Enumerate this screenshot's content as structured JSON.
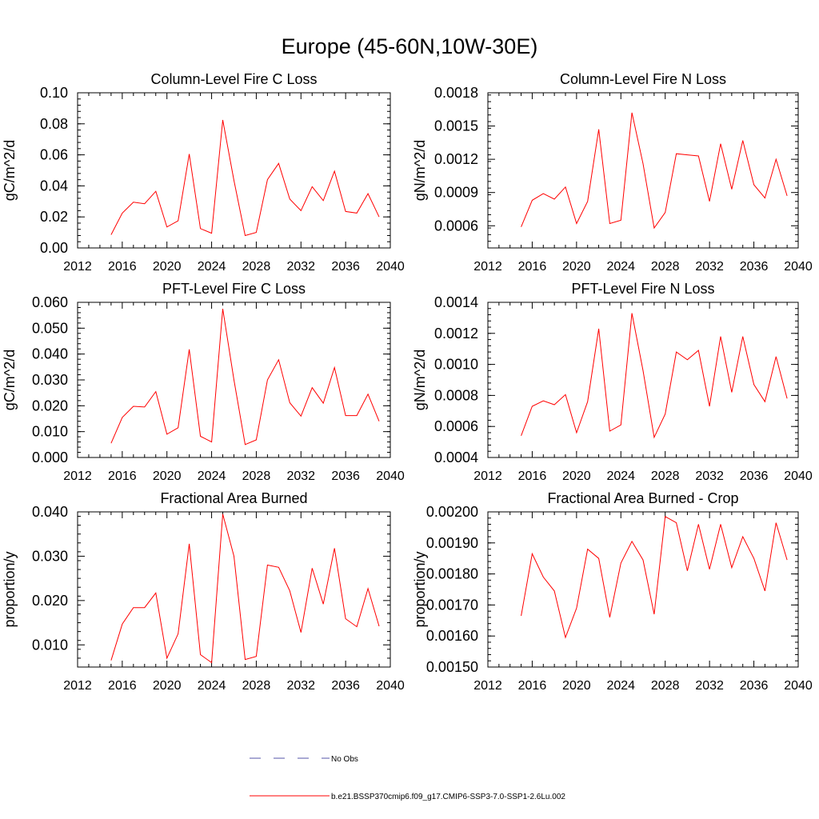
{
  "title": "Europe (45-60N,10W-30E)",
  "legend": {
    "entries": [
      {
        "label": "No Obs",
        "color": "#5555aa",
        "dash": true
      },
      {
        "label": "b.e21.BSSP370cmip6.f09_g17.CMIP6-SSP3-7.0-SSP1-2.6Lu.002",
        "color": "#ff0000",
        "dash": false
      }
    ]
  },
  "chart_data": [
    {
      "type": "line",
      "title": "Column-Level Fire C Loss",
      "ylabel": "gC/m^2/d",
      "xlim": [
        2012,
        2040
      ],
      "ylim": [
        0,
        0.1
      ],
      "xticks": [
        2012,
        2016,
        2020,
        2024,
        2028,
        2032,
        2036,
        2040
      ],
      "yticks": [
        "0.00",
        "0.02",
        "0.04",
        "0.06",
        "0.08",
        "0.10"
      ],
      "x": [
        2015,
        2016,
        2017,
        2018,
        2019,
        2020,
        2021,
        2022,
        2023,
        2024,
        2025,
        2026,
        2027,
        2028,
        2029,
        2030,
        2031,
        2032,
        2033,
        2034,
        2035,
        2036,
        2037,
        2038,
        2039
      ],
      "series": [
        {
          "values": [
            0.0085,
            0.0225,
            0.0295,
            0.0285,
            0.0365,
            0.0135,
            0.0175,
            0.0605,
            0.0125,
            0.0095,
            0.0825,
            0.0435,
            0.008,
            0.01,
            0.044,
            0.0545,
            0.0315,
            0.024,
            0.0395,
            0.0305,
            0.0495,
            0.0235,
            0.0225,
            0.035,
            0.02
          ],
          "color": "#ff0000"
        }
      ]
    },
    {
      "type": "line",
      "title": "Column-Level Fire N Loss",
      "ylabel": "gN/m^2/d",
      "xlim": [
        2012,
        2040
      ],
      "ylim": [
        0.0004,
        0.0018
      ],
      "xticks": [
        2012,
        2016,
        2020,
        2024,
        2028,
        2032,
        2036,
        2040
      ],
      "yticks": [
        "0.0006",
        "0.0009",
        "0.0012",
        "0.0015",
        "0.0018"
      ],
      "x": [
        2015,
        2016,
        2017,
        2018,
        2019,
        2020,
        2021,
        2022,
        2023,
        2024,
        2025,
        2026,
        2027,
        2028,
        2029,
        2030,
        2031,
        2032,
        2033,
        2034,
        2035,
        2036,
        2037,
        2038,
        2039
      ],
      "series": [
        {
          "values": [
            0.00059,
            0.00083,
            0.00089,
            0.00084,
            0.00095,
            0.00062,
            0.00082,
            0.00147,
            0.00062,
            0.00065,
            0.00162,
            0.00116,
            0.00058,
            0.00072,
            0.00125,
            0.00124,
            0.00123,
            0.00082,
            0.00134,
            0.00093,
            0.00137,
            0.00097,
            0.00085,
            0.0012,
            0.00087
          ],
          "color": "#ff0000"
        }
      ]
    },
    {
      "type": "line",
      "title": "PFT-Level Fire C Loss",
      "ylabel": "gC/m^2/d",
      "xlim": [
        2012,
        2040
      ],
      "ylim": [
        0,
        0.06
      ],
      "xticks": [
        2012,
        2016,
        2020,
        2024,
        2028,
        2032,
        2036,
        2040
      ],
      "yticks": [
        "0.000",
        "0.010",
        "0.020",
        "0.030",
        "0.040",
        "0.050",
        "0.060"
      ],
      "x": [
        2015,
        2016,
        2017,
        2018,
        2019,
        2020,
        2021,
        2022,
        2023,
        2024,
        2025,
        2026,
        2027,
        2028,
        2029,
        2030,
        2031,
        2032,
        2033,
        2034,
        2035,
        2036,
        2037,
        2038,
        2039
      ],
      "series": [
        {
          "values": [
            0.0055,
            0.0155,
            0.0198,
            0.0195,
            0.0255,
            0.009,
            0.0115,
            0.0418,
            0.0082,
            0.006,
            0.0575,
            0.03,
            0.005,
            0.0068,
            0.03,
            0.0378,
            0.0212,
            0.016,
            0.027,
            0.021,
            0.0348,
            0.0162,
            0.0162,
            0.0245,
            0.014
          ],
          "color": "#ff0000"
        }
      ]
    },
    {
      "type": "line",
      "title": "PFT-Level Fire N Loss",
      "ylabel": "gN/m^2/d",
      "xlim": [
        2012,
        2040
      ],
      "ylim": [
        0.0004,
        0.0014
      ],
      "xticks": [
        2012,
        2016,
        2020,
        2024,
        2028,
        2032,
        2036,
        2040
      ],
      "yticks": [
        "0.0004",
        "0.0006",
        "0.0008",
        "0.0010",
        "0.0012",
        "0.0014"
      ],
      "x": [
        2015,
        2016,
        2017,
        2018,
        2019,
        2020,
        2021,
        2022,
        2023,
        2024,
        2025,
        2026,
        2027,
        2028,
        2029,
        2030,
        2031,
        2032,
        2033,
        2034,
        2035,
        2036,
        2037,
        2038,
        2039
      ],
      "series": [
        {
          "values": [
            0.00054,
            0.00073,
            0.000765,
            0.00074,
            0.000805,
            0.00056,
            0.00076,
            0.00123,
            0.00057,
            0.00061,
            0.00133,
            0.00096,
            0.00053,
            0.00068,
            0.00108,
            0.00103,
            0.00109,
            0.00073,
            0.00118,
            0.00082,
            0.00118,
            0.00087,
            0.00076,
            0.00105,
            0.00078
          ],
          "color": "#ff0000"
        }
      ]
    },
    {
      "type": "line",
      "title": "Fractional Area Burned",
      "ylabel": "proportion/y",
      "xlim": [
        2012,
        2040
      ],
      "ylim": [
        0.005,
        0.04
      ],
      "xticks": [
        2012,
        2016,
        2020,
        2024,
        2028,
        2032,
        2036,
        2040
      ],
      "yticks": [
        "0.010",
        "0.020",
        "0.030",
        "0.040"
      ],
      "ytick_values": [
        0.01,
        0.02,
        0.03,
        0.04
      ],
      "x": [
        2015,
        2016,
        2017,
        2018,
        2019,
        2020,
        2021,
        2022,
        2023,
        2024,
        2025,
        2026,
        2027,
        2028,
        2029,
        2030,
        2031,
        2032,
        2033,
        2034,
        2035,
        2036,
        2037,
        2038,
        2039
      ],
      "series": [
        {
          "values": [
            0.0065,
            0.0147,
            0.0184,
            0.0184,
            0.0217,
            0.007,
            0.0125,
            0.0328,
            0.0078,
            0.006,
            0.0395,
            0.03,
            0.0067,
            0.0074,
            0.028,
            0.0275,
            0.0222,
            0.0128,
            0.0273,
            0.0192,
            0.0318,
            0.0159,
            0.0141,
            0.0227,
            0.0142
          ],
          "color": "#ff0000"
        }
      ]
    },
    {
      "type": "line",
      "title": "Fractional Area Burned - Crop",
      "ylabel": "proportion/y",
      "xlim": [
        2012,
        2040
      ],
      "ylim": [
        0.0015,
        0.002
      ],
      "xticks": [
        2012,
        2016,
        2020,
        2024,
        2028,
        2032,
        2036,
        2040
      ],
      "yticks": [
        "0.00150",
        "0.00160",
        "0.00170",
        "0.00180",
        "0.00190",
        "0.00200"
      ],
      "x": [
        2015,
        2016,
        2017,
        2018,
        2019,
        2020,
        2021,
        2022,
        2023,
        2024,
        2025,
        2026,
        2027,
        2028,
        2029,
        2030,
        2031,
        2032,
        2033,
        2034,
        2035,
        2036,
        2037,
        2038,
        2039
      ],
      "series": [
        {
          "values": [
            0.001665,
            0.001865,
            0.00179,
            0.001745,
            0.001595,
            0.00169,
            0.00188,
            0.00185,
            0.00166,
            0.001835,
            0.001905,
            0.001845,
            0.00167,
            0.001985,
            0.001965,
            0.00181,
            0.00196,
            0.001815,
            0.00196,
            0.00182,
            0.00192,
            0.00185,
            0.001745,
            0.001965,
            0.001845
          ],
          "color": "#ff0000"
        }
      ]
    }
  ]
}
